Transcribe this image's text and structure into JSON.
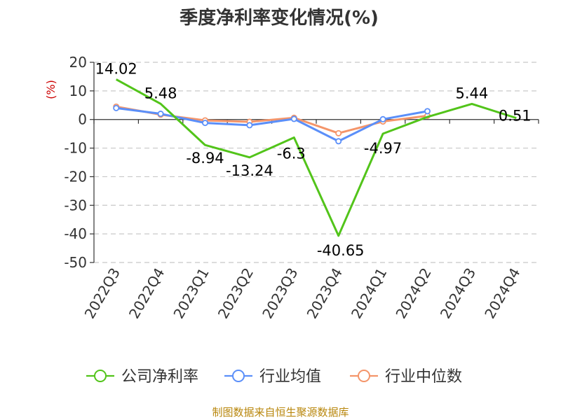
{
  "chart_data": {
    "type": "line",
    "title": "季度净利率变化情况(%)",
    "ylabel": "(%)",
    "xlabel": "",
    "categories": [
      "2022Q3",
      "2022Q4",
      "2023Q1",
      "2023Q2",
      "2023Q3",
      "2023Q4",
      "2024Q1",
      "2024Q2",
      "2024Q3",
      "2024Q4"
    ],
    "ylim": [
      -50,
      20
    ],
    "yticks": [
      20,
      10,
      0,
      -10,
      -20,
      -30,
      -40,
      -50
    ],
    "grid": true,
    "legend_position": "bottom",
    "series": [
      {
        "name": "公司净利率",
        "color": "#52c41a",
        "values": [
          14.02,
          5.48,
          -8.94,
          -13.24,
          -6.3,
          -40.65,
          -4.97,
          0.9,
          5.44,
          0.51
        ],
        "labels": [
          "14.02",
          "5.48",
          "-8.94",
          "-13.24",
          "-6.3",
          "-40.65",
          "-4.97",
          null,
          "5.44",
          "0.51"
        ]
      },
      {
        "name": "行业均值",
        "color": "#5b8ff9",
        "values": [
          4.0,
          2.0,
          -1.2,
          -2.0,
          0.2,
          -7.6,
          0.1,
          2.9,
          null,
          null
        ]
      },
      {
        "name": "行业中位数",
        "color": "#f4956a",
        "values": [
          4.5,
          1.7,
          -0.3,
          -0.8,
          0.6,
          -4.8,
          -0.7,
          1.3,
          null,
          null
        ]
      }
    ]
  },
  "source": "制图数据来自恒生聚源数据库"
}
